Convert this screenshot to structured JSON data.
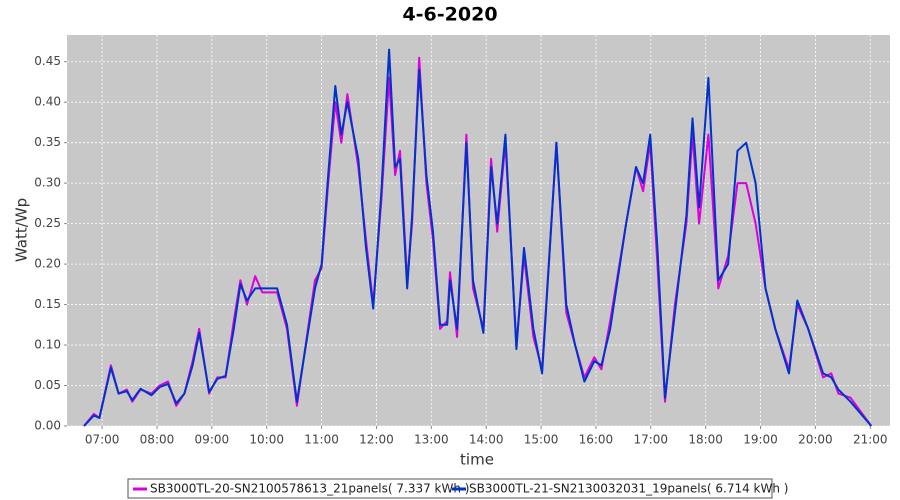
{
  "chart_data": {
    "type": "line",
    "title": "4-6-2020",
    "xlabel": "time",
    "ylabel": "Watt/Wp",
    "x": [
      6.67,
      6.85,
      6.95,
      7.16,
      7.3,
      7.45,
      7.55,
      7.7,
      7.9,
      8.05,
      8.2,
      8.35,
      8.5,
      8.65,
      8.77,
      8.95,
      9.1,
      9.25,
      9.4,
      9.52,
      9.64,
      9.79,
      9.92,
      10.19,
      10.37,
      10.55,
      10.88,
      11.0,
      11.12,
      11.25,
      11.36,
      11.47,
      11.67,
      11.81,
      11.94,
      12.09,
      12.23,
      12.34,
      12.43,
      12.56,
      12.65,
      12.78,
      12.91,
      13.03,
      13.16,
      13.29,
      13.34,
      13.47,
      13.64,
      13.76,
      13.95,
      14.09,
      14.2,
      14.35,
      14.55,
      14.69,
      14.86,
      15.02,
      15.28,
      15.46,
      15.62,
      15.79,
      15.97,
      16.1,
      16.26,
      16.55,
      16.73,
      16.86,
      16.99,
      17.12,
      17.26,
      17.44,
      17.65,
      17.76,
      17.88,
      18.05,
      18.23,
      18.41,
      18.58,
      18.74,
      18.91,
      19.09,
      19.27,
      19.52,
      19.67,
      19.87,
      20.14,
      20.29,
      20.42,
      20.64,
      21.02
    ],
    "series": [
      {
        "name": "SB3000TL-20-SN2100578613_21panels( 7.337 kWh )",
        "color": "#dd00dd",
        "values": [
          0,
          0.015,
          0.01,
          0.075,
          0.04,
          0.045,
          0.03,
          0.045,
          0.04,
          0.05,
          0.055,
          0.025,
          0.04,
          0.08,
          0.12,
          0.04,
          0.06,
          0.06,
          0.13,
          0.18,
          0.15,
          0.185,
          0.165,
          0.165,
          0.12,
          0.025,
          0.18,
          0.195,
          0.3,
          0.4,
          0.35,
          0.41,
          0.32,
          0.23,
          0.15,
          0.28,
          0.43,
          0.31,
          0.34,
          0.18,
          0.25,
          0.455,
          0.3,
          0.23,
          0.12,
          0.13,
          0.19,
          0.11,
          0.36,
          0.17,
          0.12,
          0.33,
          0.24,
          0.35,
          0.1,
          0.21,
          0.11,
          0.07,
          0.35,
          0.14,
          0.1,
          0.06,
          0.085,
          0.07,
          0.13,
          0.25,
          0.32,
          0.29,
          0.35,
          0.2,
          0.03,
          0.15,
          0.25,
          0.36,
          0.25,
          0.36,
          0.17,
          0.21,
          0.3,
          0.3,
          0.25,
          0.17,
          0.12,
          0.07,
          0.15,
          0.12,
          0.06,
          0.065,
          0.04,
          0.035,
          0
        ]
      },
      {
        "name": "SB3000TL-21-SN2130032031_19panels( 6.714 kWh )",
        "color": "#0033cc",
        "values": [
          0,
          0.013,
          0.01,
          0.072,
          0.04,
          0.043,
          0.032,
          0.046,
          0.038,
          0.048,
          0.052,
          0.028,
          0.04,
          0.075,
          0.115,
          0.042,
          0.058,
          0.062,
          0.12,
          0.175,
          0.155,
          0.17,
          0.17,
          0.17,
          0.125,
          0.03,
          0.17,
          0.2,
          0.31,
          0.42,
          0.36,
          0.4,
          0.33,
          0.22,
          0.145,
          0.29,
          0.465,
          0.32,
          0.33,
          0.17,
          0.26,
          0.44,
          0.31,
          0.24,
          0.125,
          0.125,
          0.18,
          0.12,
          0.35,
          0.18,
          0.115,
          0.32,
          0.25,
          0.36,
          0.095,
          0.22,
          0.12,
          0.065,
          0.35,
          0.15,
          0.1,
          0.055,
          0.08,
          0.075,
          0.12,
          0.25,
          0.32,
          0.3,
          0.36,
          0.22,
          0.035,
          0.14,
          0.26,
          0.38,
          0.27,
          0.43,
          0.18,
          0.2,
          0.34,
          0.35,
          0.3,
          0.17,
          0.12,
          0.065,
          0.155,
          0.12,
          0.065,
          0.06,
          0.045,
          0.03,
          0
        ]
      }
    ],
    "xlim": [
      6.36,
      21.36
    ],
    "ylim": [
      0,
      0.483
    ],
    "xticks": [
      {
        "value": 7,
        "label": "07:00"
      },
      {
        "value": 8,
        "label": "08:00"
      },
      {
        "value": 9,
        "label": "09:00"
      },
      {
        "value": 10,
        "label": "10:00"
      },
      {
        "value": 11,
        "label": "11:00"
      },
      {
        "value": 12,
        "label": "12:00"
      },
      {
        "value": 13,
        "label": "13:00"
      },
      {
        "value": 14,
        "label": "14:00"
      },
      {
        "value": 15,
        "label": "15:00"
      },
      {
        "value": 16,
        "label": "16:00"
      },
      {
        "value": 17,
        "label": "17:00"
      },
      {
        "value": 18,
        "label": "18:00"
      },
      {
        "value": 19,
        "label": "19:00"
      },
      {
        "value": 20,
        "label": "20:00"
      },
      {
        "value": 21,
        "label": "21:00"
      }
    ],
    "yticks": [
      {
        "value": 0,
        "label": "0.00"
      },
      {
        "value": 0.05,
        "label": "0.05"
      },
      {
        "value": 0.1,
        "label": "0.10"
      },
      {
        "value": 0.15,
        "label": "0.15"
      },
      {
        "value": 0.2,
        "label": "0.20"
      },
      {
        "value": 0.25,
        "label": "0.25"
      },
      {
        "value": 0.3,
        "label": "0.30"
      },
      {
        "value": 0.35,
        "label": "0.35"
      },
      {
        "value": 0.4,
        "label": "0.40"
      },
      {
        "value": 0.45,
        "label": "0.45"
      }
    ],
    "grid": true
  }
}
